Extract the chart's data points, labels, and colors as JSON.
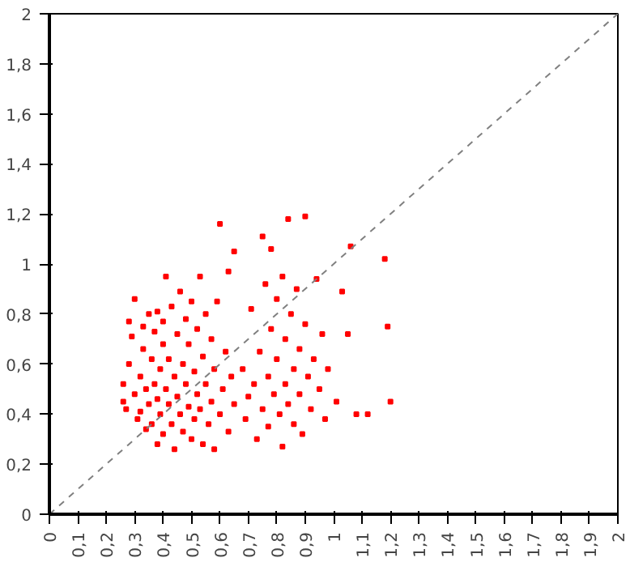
{
  "chart_data": {
    "type": "scatter",
    "xlim": [
      0,
      2
    ],
    "ylim": [
      0,
      2
    ],
    "xticks": [
      0,
      {
        "value": 0.1,
        "label": "0,1"
      },
      {
        "value": 0.2,
        "label": "0,2"
      },
      {
        "value": 0.3,
        "label": "0,3"
      },
      {
        "value": 0.4,
        "label": "0,4"
      },
      {
        "value": 0.5,
        "label": "0,5"
      },
      {
        "value": 0.6,
        "label": "0,6"
      },
      {
        "value": 0.7,
        "label": "0,7"
      },
      {
        "value": 0.8,
        "label": "0,8"
      },
      {
        "value": 0.9,
        "label": "0,9"
      },
      1,
      {
        "value": 1.1,
        "label": "1,1"
      },
      {
        "value": 1.2,
        "label": "1,2"
      },
      {
        "value": 1.3,
        "label": "1,3"
      },
      {
        "value": 1.4,
        "label": "1,4"
      },
      {
        "value": 1.5,
        "label": "1,5"
      },
      {
        "value": 1.6,
        "label": "1,6"
      },
      {
        "value": 1.7,
        "label": "1,7"
      },
      {
        "value": 1.8,
        "label": "1,8"
      },
      {
        "value": 1.9,
        "label": "1,9"
      },
      2
    ],
    "yticks": [
      0,
      {
        "value": 0.2,
        "label": "0,2"
      },
      {
        "value": 0.4,
        "label": "0,4"
      },
      {
        "value": 0.6,
        "label": "0,6"
      },
      {
        "value": 0.8,
        "label": "0,8"
      },
      1,
      {
        "value": 1.2,
        "label": "1,2"
      },
      {
        "value": 1.4,
        "label": "1,4"
      },
      {
        "value": 1.6,
        "label": "1,6"
      },
      {
        "value": 1.8,
        "label": "1,8"
      },
      2
    ],
    "grid": false,
    "marker": "square",
    "series": [
      {
        "color": "#ff0000",
        "x": [
          0.26,
          0.26,
          0.27,
          0.28,
          0.28,
          0.29,
          0.3,
          0.3,
          0.31,
          0.32,
          0.32,
          0.33,
          0.33,
          0.34,
          0.34,
          0.35,
          0.35,
          0.36,
          0.36,
          0.37,
          0.37,
          0.38,
          0.38,
          0.38,
          0.39,
          0.39,
          0.4,
          0.4,
          0.4,
          0.41,
          0.41,
          0.42,
          0.42,
          0.43,
          0.43,
          0.44,
          0.44,
          0.45,
          0.45,
          0.46,
          0.46,
          0.47,
          0.47,
          0.48,
          0.48,
          0.49,
          0.49,
          0.5,
          0.5,
          0.51,
          0.51,
          0.52,
          0.52,
          0.53,
          0.53,
          0.54,
          0.54,
          0.55,
          0.55,
          0.56,
          0.57,
          0.57,
          0.58,
          0.58,
          0.59,
          0.6,
          0.6,
          0.61,
          0.62,
          0.63,
          0.63,
          0.64,
          0.65,
          0.65,
          0.68,
          0.69,
          0.7,
          0.71,
          0.72,
          0.73,
          0.74,
          0.75,
          0.75,
          0.76,
          0.77,
          0.77,
          0.78,
          0.78,
          0.79,
          0.8,
          0.8,
          0.81,
          0.82,
          0.82,
          0.83,
          0.83,
          0.84,
          0.84,
          0.85,
          0.86,
          0.86,
          0.87,
          0.88,
          0.88,
          0.89,
          0.9,
          0.9,
          0.91,
          0.92,
          0.93,
          0.94,
          0.95,
          0.96,
          0.97,
          0.98,
          1.01,
          1.03,
          1.06,
          1.08,
          1.12,
          1.18,
          1.19,
          1.2,
          1.05
        ],
        "values": [
          0.52,
          0.45,
          0.42,
          0.77,
          0.6,
          0.71,
          0.86,
          0.48,
          0.38,
          0.55,
          0.41,
          0.75,
          0.66,
          0.34,
          0.5,
          0.8,
          0.44,
          0.62,
          0.36,
          0.73,
          0.52,
          0.81,
          0.28,
          0.46,
          0.58,
          0.4,
          0.77,
          0.68,
          0.32,
          0.95,
          0.5,
          0.44,
          0.62,
          0.83,
          0.36,
          0.55,
          0.26,
          0.72,
          0.47,
          0.89,
          0.4,
          0.6,
          0.33,
          0.78,
          0.52,
          0.43,
          0.68,
          0.3,
          0.85,
          0.57,
          0.38,
          0.48,
          0.74,
          0.95,
          0.42,
          0.63,
          0.28,
          0.52,
          0.8,
          0.36,
          0.45,
          0.7,
          0.58,
          0.26,
          0.85,
          1.16,
          0.4,
          0.5,
          0.65,
          0.97,
          0.33,
          0.55,
          1.05,
          0.44,
          0.58,
          0.38,
          0.47,
          0.82,
          0.52,
          0.3,
          0.65,
          1.11,
          0.42,
          0.92,
          0.55,
          0.35,
          1.06,
          0.74,
          0.48,
          0.86,
          0.62,
          0.4,
          0.95,
          0.27,
          0.7,
          0.52,
          1.18,
          0.44,
          0.8,
          0.58,
          0.36,
          0.9,
          0.66,
          0.48,
          0.32,
          1.19,
          0.76,
          0.55,
          0.42,
          0.62,
          0.94,
          0.5,
          0.72,
          0.38,
          0.58,
          0.45,
          0.89,
          1.07,
          0.4,
          0.4,
          1.02,
          0.75,
          0.45,
          0.72
        ]
      },
      {
        "type": "line",
        "color": "#808080",
        "line_style": "dashed",
        "marker": "none",
        "x": [
          0,
          2
        ],
        "values": [
          0,
          2
        ]
      }
    ]
  }
}
